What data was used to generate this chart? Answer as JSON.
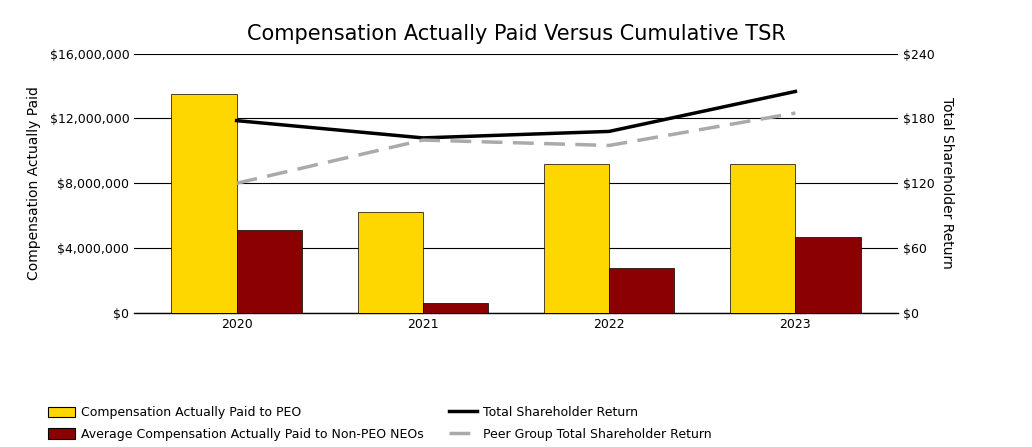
{
  "title": "Compensation Actually Paid Versus Cumulative TSR",
  "years": [
    2020,
    2021,
    2022,
    2023
  ],
  "peo_values": [
    13500000,
    6200000,
    9200000,
    9200000
  ],
  "neo_values": [
    5100000,
    600000,
    2800000,
    4700000
  ],
  "tsr_values": [
    178,
    162,
    168,
    205
  ],
  "peer_tsr_values": [
    120,
    160,
    155,
    185
  ],
  "peo_color": "#FFD700",
  "neo_color": "#8B0000",
  "tsr_color": "#000000",
  "peer_tsr_color": "#AAAAAA",
  "ylabel_left": "Compensation Actually Paid",
  "ylabel_right": "Total Shareholder Return",
  "ylim_left": [
    0,
    16000000
  ],
  "ylim_right": [
    0,
    240
  ],
  "yticks_left": [
    0,
    4000000,
    8000000,
    12000000,
    16000000
  ],
  "ytick_labels_left": [
    "$0",
    "$4,000,000",
    "$8,000,000",
    "$12,000,000",
    "$16,000,000"
  ],
  "yticks_right": [
    0,
    60,
    120,
    180,
    240
  ],
  "ytick_labels_right": [
    "$0",
    "$60",
    "$120",
    "$180",
    "$240"
  ],
  "legend_entries": [
    "Compensation Actually Paid to PEO",
    "Average Compensation Actually Paid to Non-PEO NEOs",
    "Total Shareholder Return",
    "Peer Group Total Shareholder Return"
  ],
  "bar_width": 0.35,
  "background_color": "#FFFFFF",
  "title_fontsize": 15,
  "axis_fontsize": 10,
  "tick_fontsize": 9,
  "legend_fontsize": 9
}
